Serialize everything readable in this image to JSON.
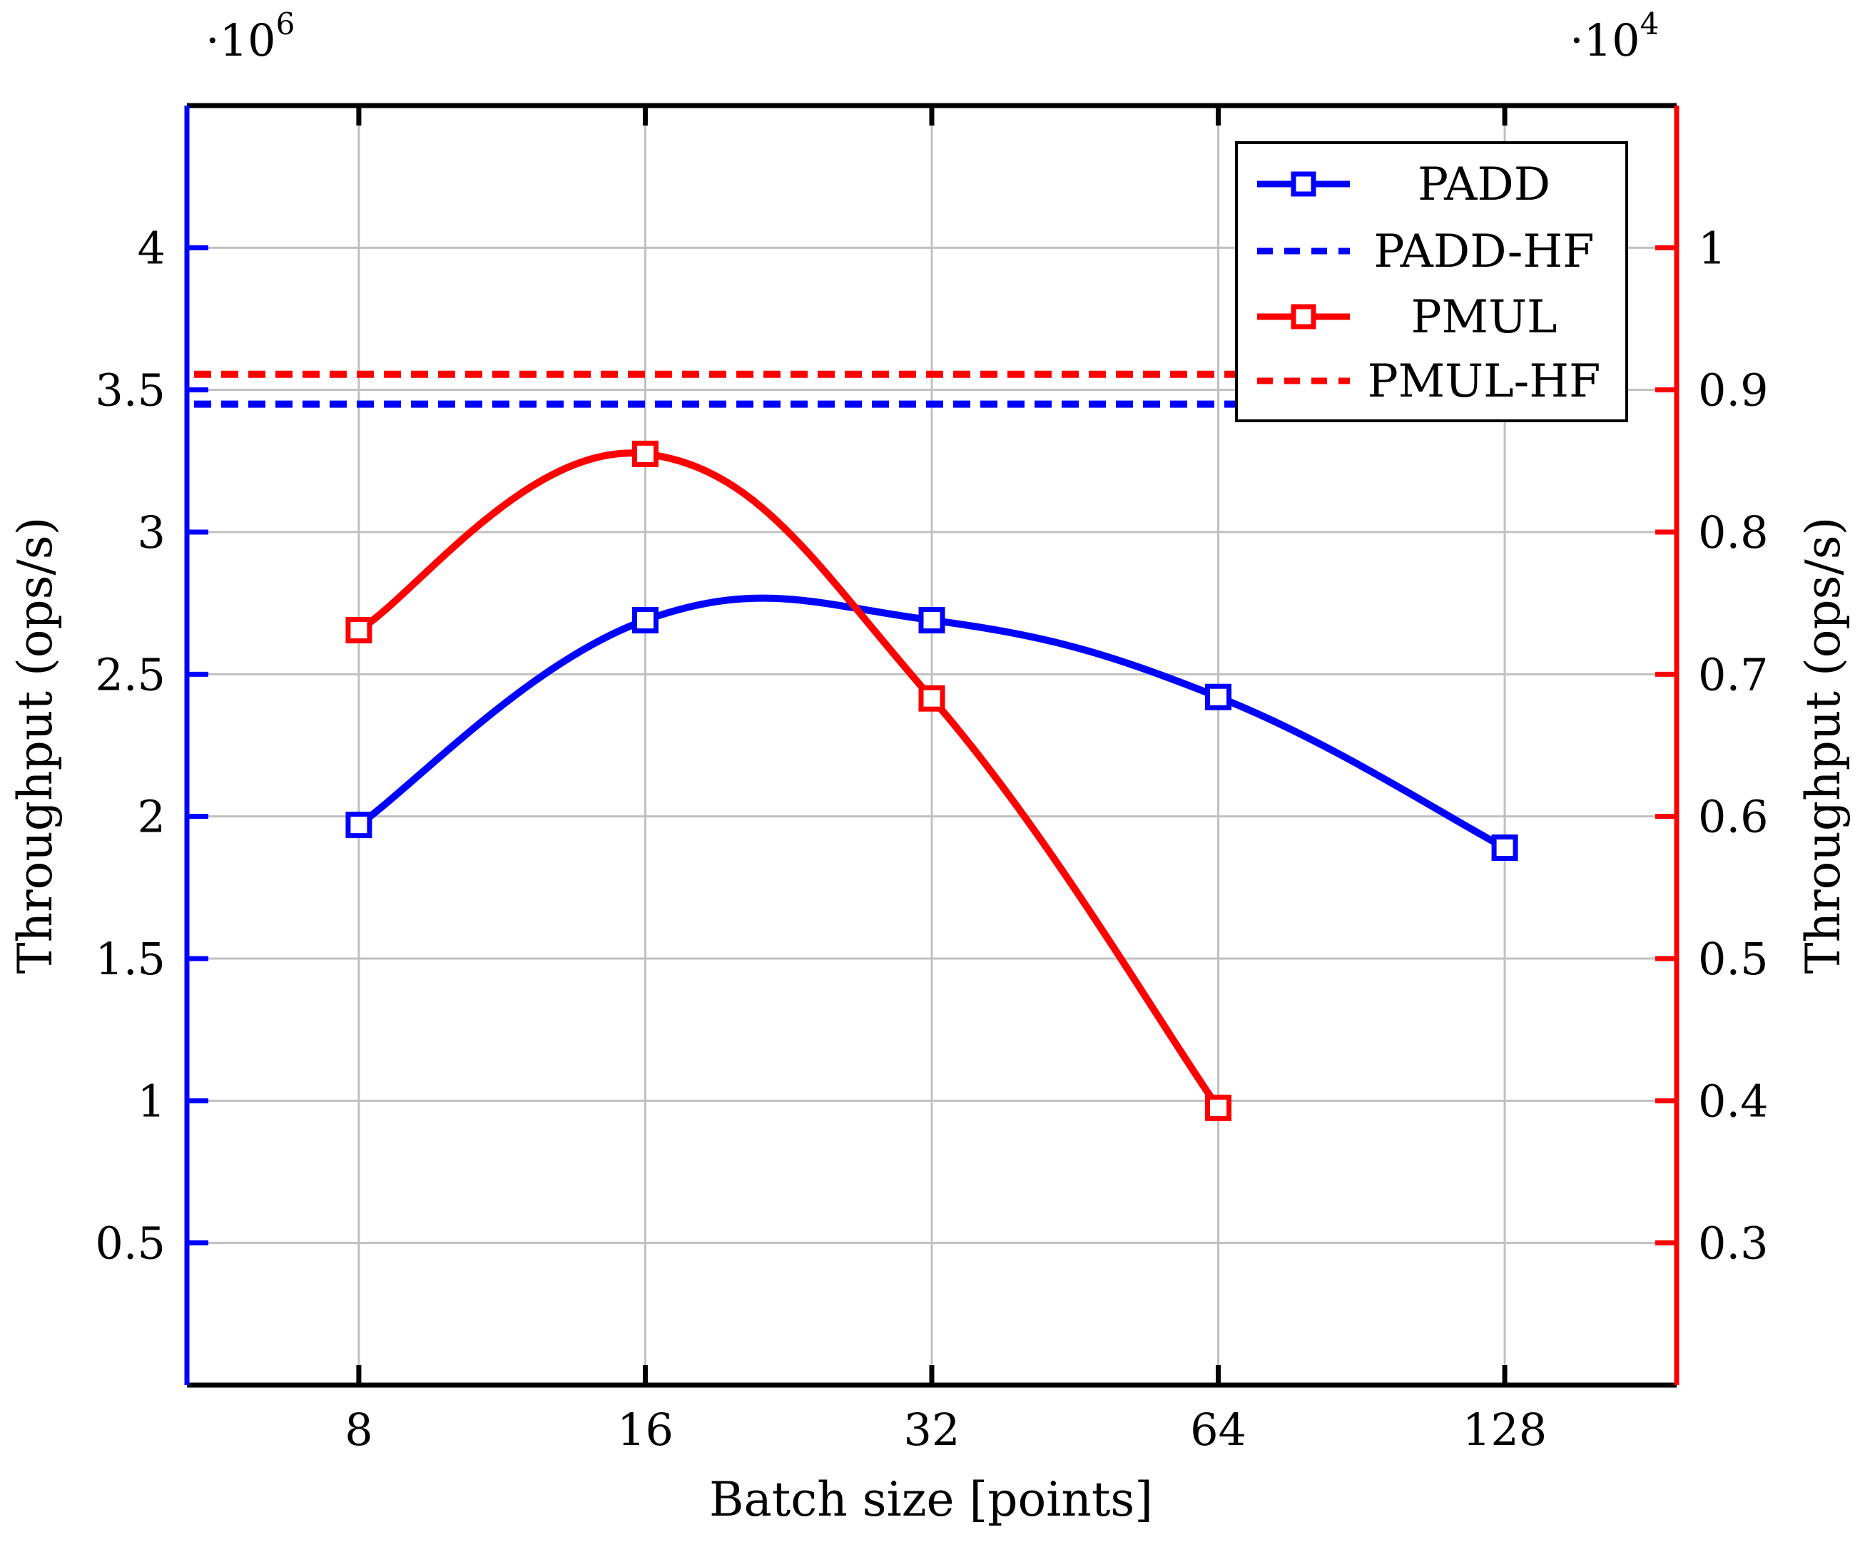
{
  "chart_data": {
    "type": "line",
    "title": "",
    "xlabel": "Batch size [points]",
    "ylabel_left": "Throughput (ops/s)",
    "ylabel_right": "Throughput (ops/s)",
    "left_multiplier": {
      "base": "·10",
      "exp": "6"
    },
    "right_multiplier": {
      "base": "·10",
      "exp": "4"
    },
    "categories": [
      "8",
      "16",
      "32",
      "64",
      "128"
    ],
    "x_range": [
      -0.6,
      4.6
    ],
    "y_left_range": [
      0,
      4.5
    ],
    "y_right_range": [
      0.2,
      1.1
    ],
    "y_left_ticks": [
      0.5,
      1,
      1.5,
      2,
      2.5,
      3,
      3.5,
      4
    ],
    "y_left_tick_labels": [
      "0.5",
      "1",
      "1.5",
      "2",
      "2.5",
      "3",
      "3.5",
      "4"
    ],
    "y_right_ticks": [
      0.3,
      0.4,
      0.5,
      0.6,
      0.7,
      0.8,
      0.9,
      1
    ],
    "y_right_tick_labels": [
      "0.3",
      "0.4",
      "0.5",
      "0.6",
      "0.7",
      "0.8",
      "0.9",
      "1"
    ],
    "grid": true,
    "legend_position": "top-right",
    "series": [
      {
        "name": "PADD",
        "axis": "left",
        "color": "#0000ff",
        "style": "solid",
        "marker": "square",
        "values": [
          1.97,
          2.69,
          2.69,
          2.42,
          1.89
        ]
      },
      {
        "name": "PADD-HF",
        "axis": "left",
        "color": "#0000ff",
        "style": "dashed",
        "marker": "none",
        "constant": 3.45
      },
      {
        "name": "PMUL",
        "axis": "right",
        "color": "#ff0000",
        "style": "solid",
        "marker": "square",
        "values": [
          0.731,
          0.855,
          0.683,
          0.395,
          null
        ]
      },
      {
        "name": "PMUL-HF",
        "axis": "right",
        "color": "#ff0000",
        "style": "dashed",
        "marker": "none",
        "constant": 0.911
      }
    ]
  }
}
